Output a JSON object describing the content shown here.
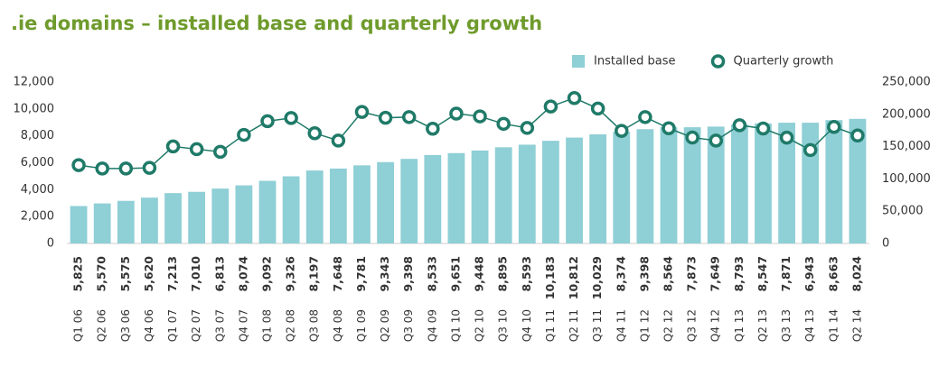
{
  "chart_data": {
    "type": "bar-line",
    "title": ".ie domains – installed base and quarterly growth",
    "categories": [
      "Q1 06",
      "Q2 06",
      "Q3 06",
      "Q4 06",
      "Q1 07",
      "Q2 07",
      "Q3 07",
      "Q4 07",
      "Q1 08",
      "Q2 08",
      "Q3 08",
      "Q4 08",
      "Q1 09",
      "Q2 09",
      "Q3 09",
      "Q4 09",
      "Q1 10",
      "Q2 10",
      "Q3 10",
      "Q4 10",
      "Q1 11",
      "Q2 11",
      "Q3 11",
      "Q4 11",
      "Q1 12",
      "Q2 12",
      "Q3 12",
      "Q4 12",
      "Q1 13",
      "Q2 13",
      "Q3 13",
      "Q4 13",
      "Q1 14",
      "Q2 14"
    ],
    "series": [
      {
        "name": "Installed base",
        "type": "bar",
        "axis": "y2",
        "color": "#8fcfd6",
        "values": [
          58000,
          62000,
          66000,
          71000,
          78000,
          80000,
          85000,
          90000,
          97000,
          104000,
          113000,
          116000,
          121000,
          126000,
          131000,
          137000,
          140000,
          144000,
          149000,
          153000,
          159000,
          164000,
          169000,
          173000,
          177000,
          180000,
          180000,
          181000,
          184000,
          186000,
          187000,
          187000,
          191000,
          193000
        ]
      },
      {
        "name": "Quarterly growth",
        "type": "line",
        "axis": "y",
        "color": "#1f7a68",
        "values": [
          5825,
          5570,
          5575,
          5620,
          7213,
          7010,
          6813,
          8074,
          9092,
          9326,
          8197,
          7648,
          9781,
          9343,
          9398,
          8533,
          9651,
          9448,
          8895,
          8593,
          10183,
          10812,
          10029,
          8374,
          9398,
          8564,
          7873,
          7649,
          8793,
          8547,
          7871,
          6943,
          8663,
          8024
        ],
        "value_labels": [
          "5,825",
          "5,570",
          "5,575",
          "5,620",
          "7,213",
          "7,010",
          "6,813",
          "8,074",
          "9,092",
          "9,326",
          "8,197",
          "7,648",
          "9,781",
          "9,343",
          "9,398",
          "8,533",
          "9,651",
          "9,448",
          "8,895",
          "8,593",
          "10,183",
          "10,812",
          "10,029",
          "8,374",
          "9,398",
          "8,564",
          "7,873",
          "7,649",
          "8,793",
          "8,547",
          "7,871",
          "6,943",
          "8,663",
          "8,024"
        ]
      }
    ],
    "ylim": [
      0,
      12000
    ],
    "yticks": [
      0,
      {
        "value": 2000,
        "label": "2,000"
      },
      {
        "value": 4000,
        "label": "4,000"
      },
      {
        "value": 6000,
        "label": "6,000"
      },
      {
        "value": 8000,
        "label": "8,000"
      },
      {
        "value": 10000,
        "label": "10,000"
      },
      {
        "value": 12000,
        "label": "12,000"
      }
    ],
    "y2lim": [
      0,
      250000
    ],
    "y2ticks": [
      0,
      {
        "value": 50000,
        "label": "50,000"
      },
      {
        "value": 100000,
        "label": "100,000"
      },
      {
        "value": 150000,
        "label": "150,000"
      },
      {
        "value": 200000,
        "label": "200,000"
      },
      {
        "value": 250000,
        "label": "250,000"
      }
    ],
    "grid": false,
    "legend": "top-right"
  }
}
